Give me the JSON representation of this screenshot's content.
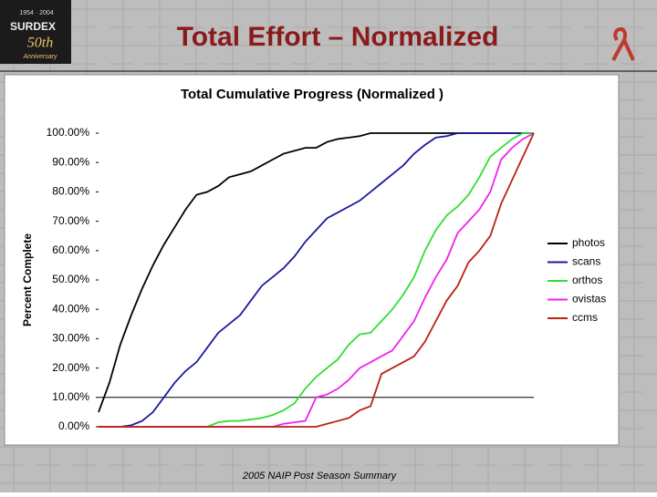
{
  "slide": {
    "title": "Total Effort – Normalized",
    "footer": "2005 NAIP Post Season Summary",
    "logo": {
      "name": "SURDEX",
      "years": "1954 · 2004",
      "badge": "50th",
      "caption": "Anniversary"
    }
  },
  "chart_data": {
    "type": "line",
    "title": "Total Cumulative Progress (Normalized )",
    "y_label": "Percent Complete",
    "categories": [
      null,
      null,
      null,
      null,
      null,
      null,
      null,
      null,
      null,
      null,
      null,
      null,
      null,
      null,
      null,
      null,
      null,
      null,
      null,
      null,
      null,
      null,
      null,
      null,
      null,
      null,
      null,
      null,
      null,
      null,
      null,
      null,
      null,
      null,
      null,
      null,
      null,
      null,
      null,
      null,
      null
    ],
    "ylim": [
      0,
      100
    ],
    "yticks": [
      {
        "value": 0,
        "label": "0.00%"
      },
      {
        "value": 10,
        "label": "10.00%"
      },
      {
        "value": 20,
        "label": "20.00%"
      },
      {
        "value": 30,
        "label": "30.00%"
      },
      {
        "value": 40,
        "label": "40.00%"
      },
      {
        "value": 50,
        "label": "50.00%"
      },
      {
        "value": 60,
        "label": "60.00%"
      },
      {
        "value": 70,
        "label": "70.00%"
      },
      {
        "value": 80,
        "label": "80.00%"
      },
      {
        "value": 90,
        "label": "90.00%"
      },
      {
        "value": 100,
        "label": "100.00%"
      }
    ],
    "x_axis_at": 10,
    "grid": false,
    "legend": "right",
    "series": [
      {
        "name": "photos",
        "color": "#000000",
        "values": [
          5,
          15,
          28,
          38,
          47,
          55,
          62,
          68,
          74,
          79,
          80,
          82,
          85,
          86,
          87,
          89,
          91,
          93,
          94,
          95,
          95,
          97,
          98,
          98.5,
          99,
          100,
          100,
          100,
          100,
          100,
          100,
          100,
          100,
          100,
          100,
          100,
          100,
          100,
          100,
          100,
          100
        ]
      },
      {
        "name": "scans",
        "color": "#1a1a9c",
        "values": [
          0,
          0,
          0,
          0.5,
          2,
          5,
          10,
          15,
          19,
          22,
          27,
          32,
          35,
          38,
          43,
          48,
          51,
          54,
          58,
          63,
          67,
          71,
          73,
          75,
          77,
          80,
          83,
          86,
          89,
          93,
          96,
          98.5,
          99,
          100,
          100,
          100,
          100,
          100,
          100,
          100,
          100
        ]
      },
      {
        "name": "orthos",
        "color": "#33dd33",
        "values": [
          0,
          0,
          0,
          0,
          0,
          0,
          0,
          0,
          0,
          0,
          0,
          1.5,
          2,
          2,
          2.5,
          3,
          4,
          5.6,
          8,
          13,
          17,
          20,
          23,
          28,
          31.5,
          32,
          36,
          40,
          45,
          51,
          60,
          67,
          72,
          75,
          79,
          85,
          92,
          95,
          98,
          100,
          100
        ]
      },
      {
        "name": "ovistas",
        "color": "#ee22ee",
        "values": [
          0,
          0,
          0,
          0,
          0,
          0,
          0,
          0,
          0,
          0,
          0,
          0,
          0,
          0,
          0,
          0,
          0,
          1,
          1.5,
          2,
          10,
          11,
          13,
          16,
          20,
          22,
          24,
          26,
          31,
          36,
          44,
          51,
          57,
          66,
          70,
          74,
          80,
          91,
          95,
          98,
          100
        ]
      },
      {
        "name": "ccms",
        "color": "#bb2211",
        "values": [
          0,
          0,
          0,
          0,
          0,
          0,
          0,
          0,
          0,
          0,
          0,
          0,
          0,
          0,
          0,
          0,
          0,
          0,
          0,
          0,
          0,
          1,
          2,
          3,
          5.6,
          7,
          18,
          20,
          22,
          24,
          29,
          36,
          43,
          48,
          56,
          60,
          65,
          76,
          84,
          92,
          100
        ]
      }
    ]
  }
}
